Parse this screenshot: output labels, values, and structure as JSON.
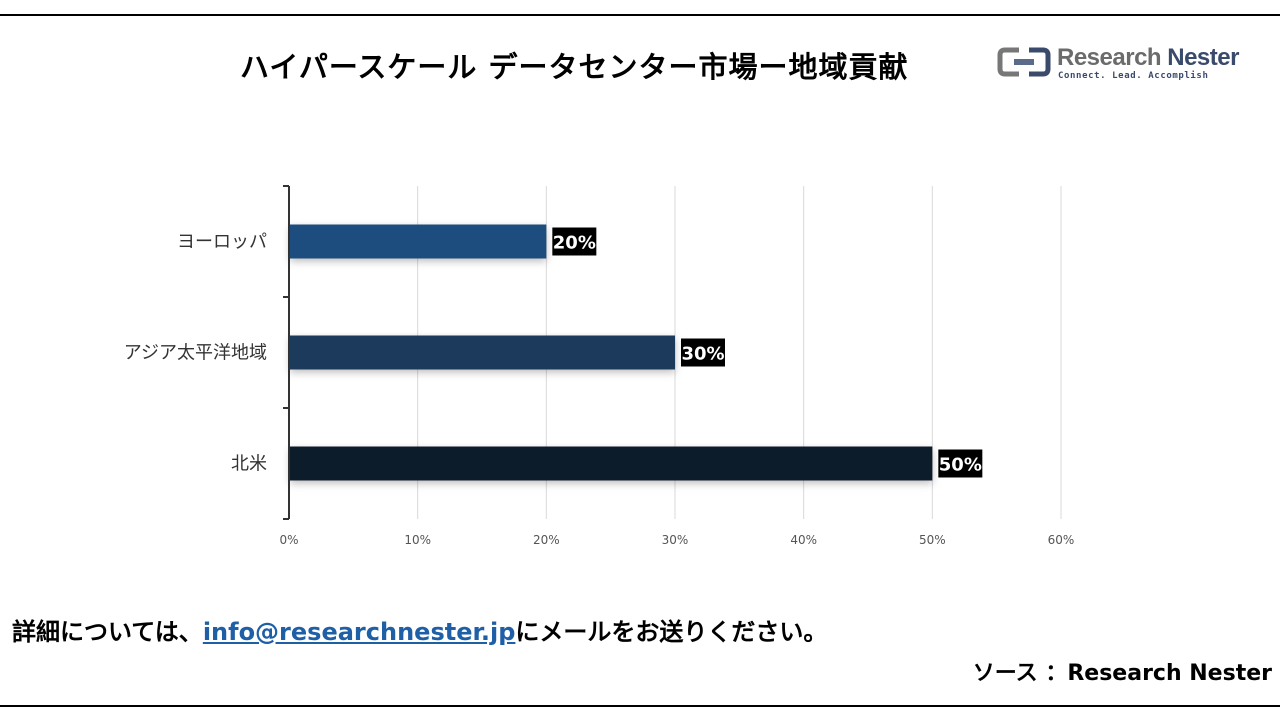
{
  "header": {
    "title": "ハイパースケール データセンター市場ー地域貢献"
  },
  "logo": {
    "name_part1": "Research ",
    "name_part2": "Nester",
    "tagline": "Connect. Lead. Accomplish"
  },
  "chart_data": {
    "type": "bar",
    "orientation": "horizontal",
    "title": "ハイパースケール データセンター市場ー地域貢献",
    "categories": [
      "ヨーロッパ",
      "アジア太平洋地域",
      "北米"
    ],
    "values": [
      20,
      30,
      50
    ],
    "value_labels": [
      "20%",
      "30%",
      "50%"
    ],
    "bar_colors": [
      "#1f4e7e",
      "#1c3a5c",
      "#0e1c2a"
    ],
    "xlim": [
      0,
      60
    ],
    "xticks": [
      0,
      10,
      20,
      30,
      40,
      50,
      60
    ],
    "xtick_labels": [
      "0%",
      "10%",
      "20%",
      "30%",
      "40%",
      "50%",
      "60%"
    ],
    "grid": true,
    "legend": "none"
  },
  "footer": {
    "note_prefix": "詳細については、",
    "email": "info@researchnester.jp",
    "note_suffix": "にメールをお送りください。",
    "source": "ソース ：Research Nester"
  }
}
